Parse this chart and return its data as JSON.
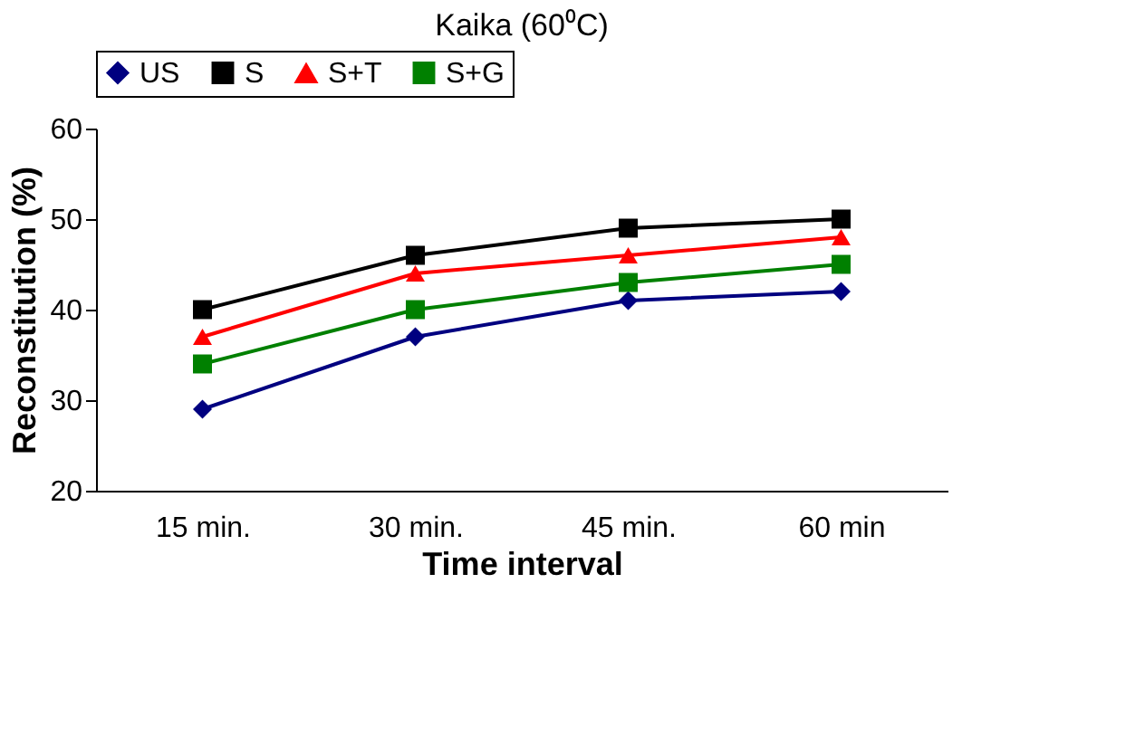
{
  "chart_data": {
    "type": "line",
    "title": "Kaika (60⁰C)",
    "xlabel": "Time interval",
    "ylabel": "Reconstitution (%)",
    "categories": [
      "15 min.",
      "30 min.",
      "45 min.",
      "60 min"
    ],
    "series": [
      {
        "name": "US",
        "color": "#000080",
        "marker": "diamond",
        "values": [
          29,
          37,
          41,
          42
        ]
      },
      {
        "name": "S",
        "color": "#000000",
        "marker": "square",
        "values": [
          40,
          46,
          49,
          50
        ]
      },
      {
        "name": "S+T",
        "color": "#ff0000",
        "marker": "triangle",
        "values": [
          37,
          44,
          46,
          48
        ]
      },
      {
        "name": "S+G",
        "color": "#008000",
        "marker": "square",
        "values": [
          34,
          40,
          43,
          45
        ]
      }
    ],
    "ylim": [
      20,
      60
    ],
    "yticks": [
      20,
      30,
      40,
      50,
      60
    ],
    "grid": false,
    "legend": "top",
    "line_style": "solid"
  }
}
